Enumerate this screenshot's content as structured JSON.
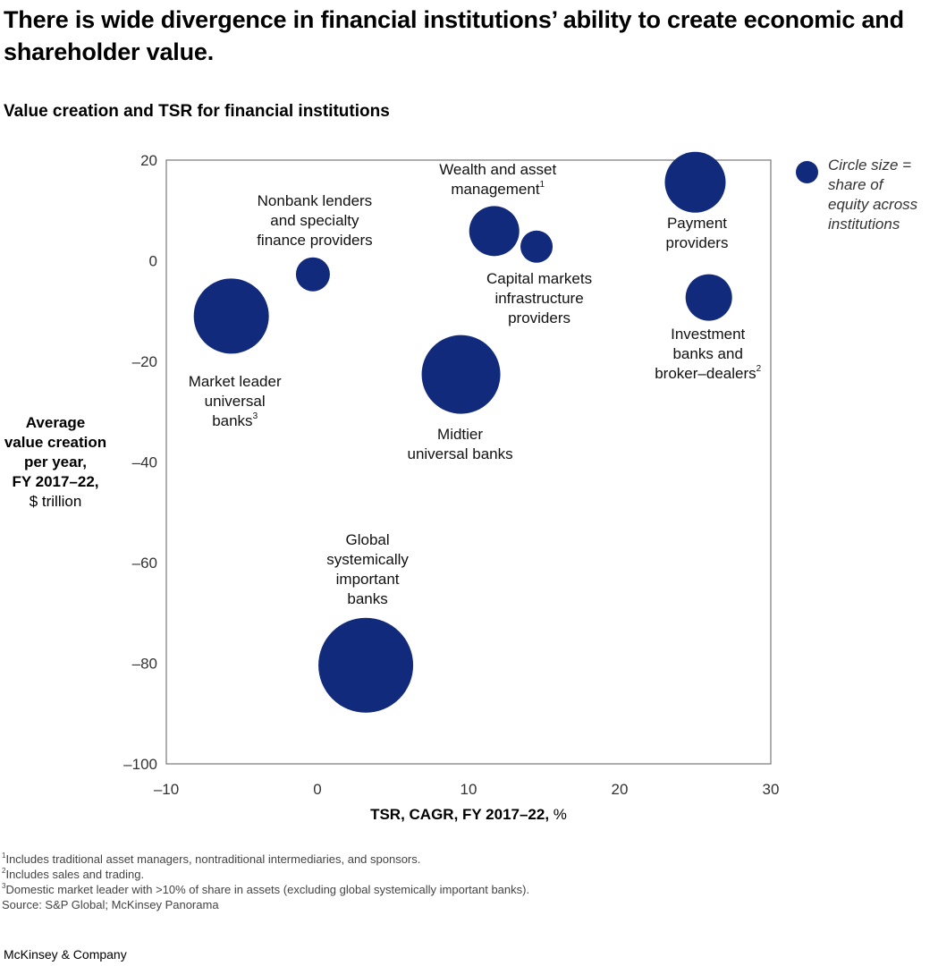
{
  "header": {
    "title": "There is wide divergence in financial institutions’ ability to create economic and shareholder value.",
    "subtitle": "Value creation and TSR for financial institutions"
  },
  "chart_data": {
    "type": "scatter",
    "subtype": "bubble",
    "xlabel_bold": "TSR, CAGR, FY 2017–22,",
    "xlabel_unit": " %",
    "ylabel_bold": [
      "Average",
      "value creation",
      "per year,",
      "FY 2017–22,"
    ],
    "ylabel_unit": "$ trillion",
    "xlim": [
      -10,
      30
    ],
    "ylim": [
      -100,
      20
    ],
    "xticks": [
      -10,
      0,
      10,
      20,
      30
    ],
    "xtick_labels": [
      "–10",
      "0",
      "10",
      "20",
      "30"
    ],
    "yticks": [
      20,
      0,
      -20,
      -40,
      -60,
      -80,
      -100
    ],
    "ytick_labels": [
      "20",
      "0",
      "–20",
      "–40",
      "–60",
      "–80",
      "–100"
    ],
    "grid": false,
    "color": "#122a7c",
    "legend": {
      "placement": "top-right",
      "lines": [
        "Circle size =",
        "share of",
        "equity across",
        "institutions"
      ]
    },
    "points": [
      {
        "label": [
          "Market leader",
          "universal",
          "banks"
        ],
        "sup": "3",
        "x": -5.7,
        "y": -11.0,
        "size": 42
      },
      {
        "label": [
          "Nonbank lenders",
          "and specialty",
          "finance providers"
        ],
        "sup": "",
        "x": -0.3,
        "y": -2.7,
        "size": 19
      },
      {
        "label": [
          "Wealth and asset",
          "management"
        ],
        "sup": "1",
        "x": 11.7,
        "y": 5.9,
        "size": 28
      },
      {
        "label": [
          "Capital markets",
          "infrastructure",
          "providers"
        ],
        "sup": "",
        "x": 14.5,
        "y": 2.8,
        "size": 18
      },
      {
        "label": [
          "Payment",
          "providers"
        ],
        "sup": "",
        "x": 25.0,
        "y": 15.6,
        "size": 34
      },
      {
        "label": [
          "Investment",
          "banks and",
          "broker–dealers"
        ],
        "sup": "2",
        "x": 25.9,
        "y": -7.3,
        "size": 26
      },
      {
        "label": [
          "Midtier",
          "universal banks"
        ],
        "sup": "",
        "x": 9.5,
        "y": -22.6,
        "size": 44
      },
      {
        "label": [
          "Global",
          "systemically",
          "important",
          "banks"
        ],
        "sup": "",
        "x": 3.2,
        "y": -80.4,
        "size": 53
      }
    ]
  },
  "footnotes": [
    {
      "sup": "1",
      "text": "Includes traditional asset managers, nontraditional intermediaries, and sponsors."
    },
    {
      "sup": "2",
      "text": "Includes sales and trading."
    },
    {
      "sup": "3",
      "text": "Domestic market leader with >10% of share in assets (excluding global systemically important banks)."
    }
  ],
  "source": " Source: S&P Global; McKinsey Panorama",
  "brand": "McKinsey & Company"
}
